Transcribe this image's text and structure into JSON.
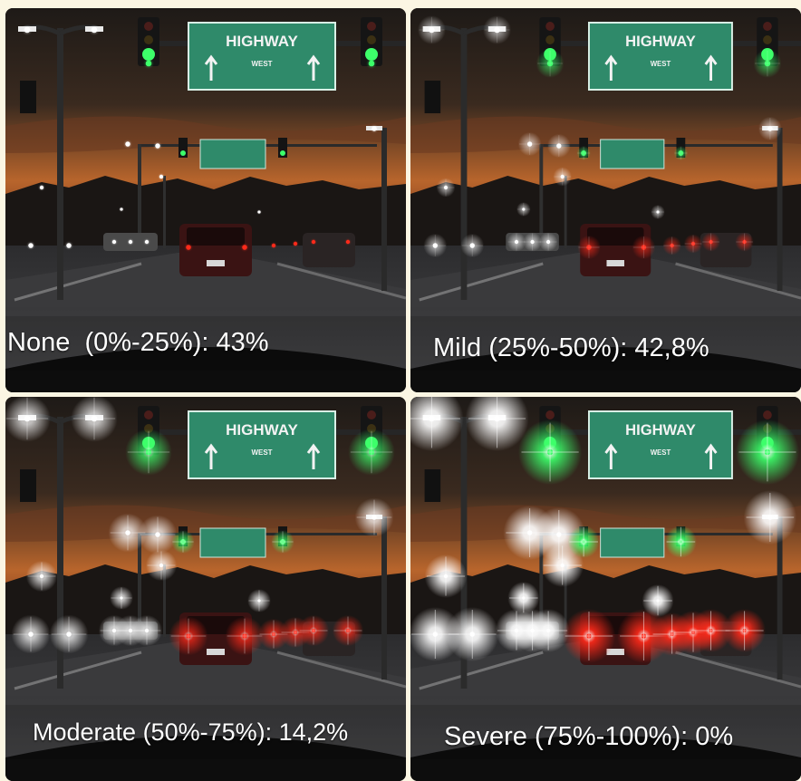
{
  "panels": [
    {
      "id": "none",
      "caption": "None  (0%-25%): 43%",
      "glare_level": 0.0
    },
    {
      "id": "mild",
      "caption": "Mild (25%-50%): 42,8%",
      "glare_level": 0.33
    },
    {
      "id": "moderate",
      "caption": "Moderate (50%-75%): 14,2%",
      "glare_level": 0.66
    },
    {
      "id": "severe",
      "caption": "Severe (75%-100%): 0%",
      "glare_level": 1.0
    }
  ],
  "sign": {
    "main": "HIGHWAY",
    "sub": "WEST"
  },
  "colors": {
    "sky_top": "#3a2a1f",
    "sky_glow": "#b8652c",
    "sign_green": "#2f8a6a",
    "signal_green": "#3dff6a",
    "tail_red": "#ff2a1a",
    "headlight_white": "#ffffff"
  }
}
